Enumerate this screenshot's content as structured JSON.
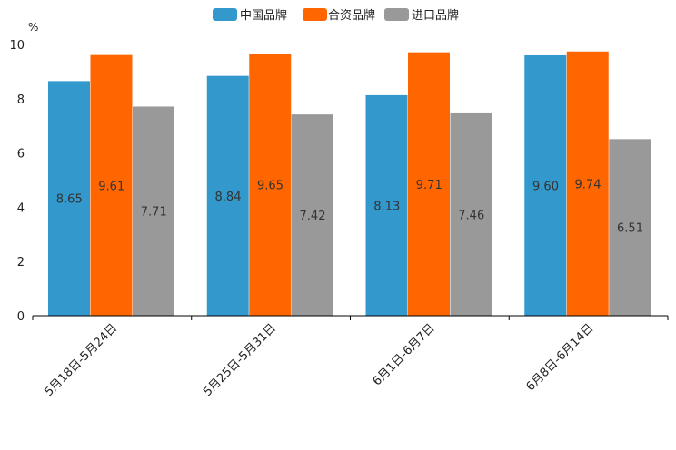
{
  "chart_data": {
    "type": "bar",
    "title": "",
    "xlabel": "",
    "ylabel": "%",
    "ylim": [
      0,
      10
    ],
    "yticks": [
      0,
      2,
      4,
      6,
      8,
      10
    ],
    "legend_position": "top-center",
    "grid": false,
    "categories": [
      "5月18日-5月24日",
      "5月25日-5月31日",
      "6月1日-6月7日",
      "6月8日-6月14日"
    ],
    "series": [
      {
        "name": "中国品牌",
        "color": "#3399cc",
        "values": [
          8.65,
          8.84,
          8.13,
          9.6
        ],
        "labels": [
          "8.65",
          "8.84",
          "8.13",
          "9.60"
        ]
      },
      {
        "name": "合资品牌",
        "color": "#ff6600",
        "values": [
          9.61,
          9.65,
          9.71,
          9.74
        ],
        "labels": [
          "9.61",
          "9.65",
          "9.71",
          "9.74"
        ]
      },
      {
        "name": "进口品牌",
        "color": "#999999",
        "values": [
          7.71,
          7.42,
          7.46,
          6.51
        ],
        "labels": [
          "7.71",
          "7.42",
          "7.46",
          "6.51"
        ]
      }
    ]
  }
}
